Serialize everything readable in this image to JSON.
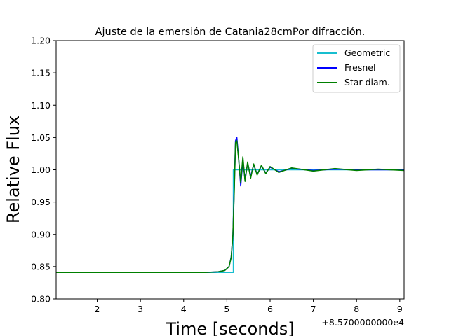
{
  "chart_data": {
    "type": "line",
    "title": "Ajuste de la emersión de Catania28cmPor difracción.",
    "xlabel": "Time [seconds]",
    "ylabel": "Relative Flux",
    "x_offset_label": "+8.5700000000e4",
    "xlim": [
      1.05,
      9.1
    ],
    "ylim": [
      0.8,
      1.2
    ],
    "x_ticks": [
      2,
      3,
      4,
      5,
      6,
      7,
      8,
      9
    ],
    "x_tick_labels": [
      "2",
      "3",
      "4",
      "5",
      "6",
      "7",
      "8",
      "9"
    ],
    "y_ticks": [
      0.8,
      0.85,
      0.9,
      0.95,
      1.0,
      1.05,
      1.1,
      1.15,
      1.2
    ],
    "y_tick_labels": [
      "0.80",
      "0.85",
      "0.90",
      "0.95",
      "1.00",
      "1.05",
      "1.10",
      "1.15",
      "1.20"
    ],
    "grid": false,
    "legend_position": "top-right",
    "series": [
      {
        "name": "Geometric",
        "color": "#17becf",
        "x": [
          1.05,
          5.15,
          5.15,
          5.22,
          5.22,
          9.1
        ],
        "y": [
          0.841,
          0.841,
          1.0,
          1.0,
          1.0,
          1.0
        ]
      },
      {
        "name": "Fresnel",
        "color": "#0000ff",
        "x": [
          1.05,
          4.5,
          4.8,
          4.95,
          5.05,
          5.1,
          5.14,
          5.17,
          5.2,
          5.23,
          5.27,
          5.32,
          5.37,
          5.42,
          5.48,
          5.55,
          5.62,
          5.7,
          5.8,
          5.9,
          6.0,
          6.2,
          6.5,
          7.0,
          7.5,
          8.0,
          8.5,
          9.1
        ],
        "y": [
          0.841,
          0.841,
          0.842,
          0.844,
          0.85,
          0.865,
          0.9,
          0.97,
          1.045,
          1.05,
          1.02,
          0.975,
          1.015,
          0.985,
          1.01,
          0.99,
          1.008,
          0.993,
          1.006,
          0.995,
          1.004,
          0.997,
          1.002,
          0.999,
          1.001,
          1.0,
          1.0,
          1.0
        ]
      },
      {
        "name": "Star diam.",
        "color": "#008000",
        "x": [
          1.05,
          4.5,
          4.8,
          4.95,
          5.05,
          5.1,
          5.14,
          5.17,
          5.2,
          5.23,
          5.27,
          5.32,
          5.37,
          5.42,
          5.48,
          5.55,
          5.62,
          5.7,
          5.8,
          5.9,
          6.0,
          6.2,
          6.5,
          7.0,
          7.5,
          8.0,
          8.5,
          9.1
        ],
        "y": [
          0.841,
          0.841,
          0.842,
          0.844,
          0.85,
          0.864,
          0.9,
          0.965,
          1.042,
          1.045,
          1.018,
          0.98,
          1.02,
          0.982,
          1.012,
          0.987,
          1.009,
          0.992,
          1.007,
          0.994,
          1.005,
          0.996,
          1.003,
          0.998,
          1.002,
          0.999,
          1.001,
          0.999
        ]
      }
    ]
  }
}
